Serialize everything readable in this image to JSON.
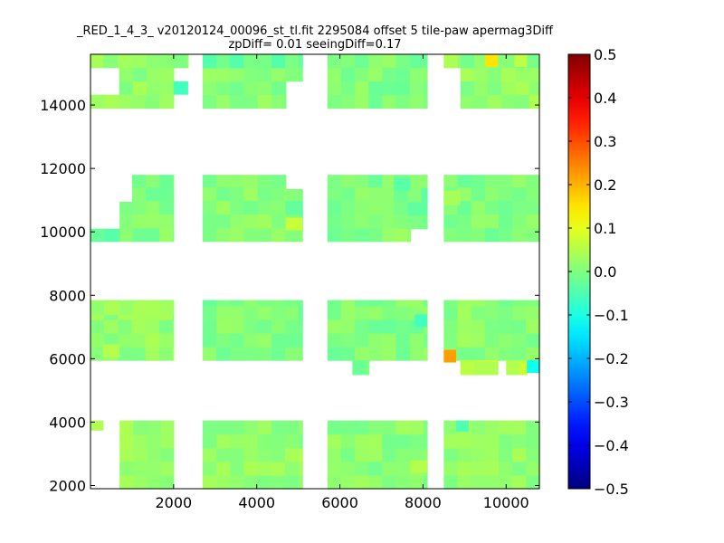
{
  "chart_data": {
    "type": "heatmap",
    "title_line1": "_RED_1_4_3_ v20120124_00096_st_tl.fit 2295084 offset 5 tile-paw apermag3Diff",
    "title_line2": "zpDiff= 0.01 seeingDiff=0.17",
    "xlabel": "",
    "ylabel": "",
    "xlim": [
      0,
      10800
    ],
    "ylim": [
      1900,
      15600
    ],
    "xticks": [
      2000,
      4000,
      6000,
      8000,
      10000
    ],
    "yticks": [
      2000,
      4000,
      6000,
      8000,
      10000,
      12000,
      14000
    ],
    "colorbar": {
      "colormap": "jet",
      "vmin": -0.5,
      "vmax": 0.5,
      "ticks": [
        0.5,
        0.4,
        0.3,
        0.2,
        0.1,
        0.0,
        -0.1,
        -0.2,
        -0.3,
        -0.4,
        -0.5
      ],
      "tick_labels": [
        "0.5",
        "0.4",
        "0.3",
        "0.2",
        "0.1",
        "0.0",
        "−0.1",
        "−0.2",
        "−0.3",
        "−0.4",
        "−0.5"
      ]
    },
    "cell_size": {
      "dx": 330,
      "dy": 430
    },
    "default_value": 0.0,
    "regions": [
      {
        "x": [
          0,
          690
        ],
        "y": [
          15180,
          15600
        ],
        "value": 0.02
      },
      {
        "x": [
          690,
          2000
        ],
        "y": [
          14325,
          15600
        ],
        "value": 0.02
      },
      {
        "x": [
          2000,
          2350
        ],
        "y": [
          15180,
          15600
        ],
        "value": 0.02
      },
      {
        "x": [
          0,
          2000
        ],
        "y": [
          13900,
          14325
        ],
        "value": 0.02
      },
      {
        "x": [
          3100,
          3400
        ],
        "y": [
          15180,
          15600
        ],
        "value": 0.01
      },
      {
        "x": [
          2700,
          4700
        ],
        "y": [
          13900,
          14750
        ],
        "value": 0.01
      },
      {
        "x": [
          2700,
          5100
        ],
        "y": [
          14750,
          15180
        ],
        "value": 0.01
      },
      {
        "x": [
          2700,
          5100
        ],
        "y": [
          15180,
          15600
        ],
        "value": -0.02
      },
      {
        "x": [
          5700,
          8100
        ],
        "y": [
          13900,
          15600
        ],
        "value": 0.0
      },
      {
        "x": [
          8900,
          10800
        ],
        "y": [
          13900,
          15180
        ],
        "value": 0.02
      },
      {
        "x": [
          8900,
          10800
        ],
        "y": [
          15180,
          15600
        ],
        "value": 0.0
      },
      {
        "x": [
          8500,
          8900
        ],
        "y": [
          15180,
          15600
        ],
        "value": 0.02
      },
      {
        "x": [
          1000,
          2000
        ],
        "y": [
          9700,
          11800
        ],
        "value": 0.0
      },
      {
        "x": [
          700,
          1000
        ],
        "y": [
          9700,
          10950
        ],
        "value": 0.02
      },
      {
        "x": [
          0,
          700
        ],
        "y": [
          9700,
          10100
        ],
        "value": -0.02
      },
      {
        "x": [
          2700,
          4700
        ],
        "y": [
          9700,
          11800
        ],
        "value": 0.01
      },
      {
        "x": [
          4700,
          5100
        ],
        "y": [
          9700,
          11350
        ],
        "value": -0.01
      },
      {
        "x": [
          5700,
          7300
        ],
        "y": [
          9700,
          11800
        ],
        "value": 0.0
      },
      {
        "x": [
          7300,
          8100
        ],
        "y": [
          10100,
          11800
        ],
        "value": -0.01
      },
      {
        "x": [
          7300,
          7700
        ],
        "y": [
          9700,
          10100
        ],
        "value": 0.02
      },
      {
        "x": [
          8500,
          10800
        ],
        "y": [
          9700,
          11800
        ],
        "value": 0.0
      },
      {
        "x": [
          0,
          2000
        ],
        "y": [
          5950,
          7400
        ],
        "value": 0.02
      },
      {
        "x": [
          700,
          2000
        ],
        "y": [
          7400,
          7850
        ],
        "value": 0.02
      },
      {
        "x": [
          0,
          700
        ],
        "y": [
          7400,
          7850
        ],
        "value": 0.02
      },
      {
        "x": [
          2700,
          5100
        ],
        "y": [
          5950,
          7850
        ],
        "value": 0.0
      },
      {
        "x": [
          5700,
          8100
        ],
        "y": [
          5950,
          7850
        ],
        "value": 0.0
      },
      {
        "x": [
          6300,
          6700
        ],
        "y": [
          5500,
          5950
        ],
        "value": -0.02
      },
      {
        "x": [
          8500,
          10800
        ],
        "y": [
          5950,
          7850
        ],
        "value": 0.01
      },
      {
        "x": [
          8900,
          9800
        ],
        "y": [
          5500,
          5950
        ],
        "value": 0.06
      },
      {
        "x": [
          10000,
          10500
        ],
        "y": [
          5500,
          5950
        ],
        "value": 0.05
      },
      {
        "x": [
          0,
          300
        ],
        "y": [
          3750,
          4050
        ],
        "value": 0.04
      },
      {
        "x": [
          700,
          2000
        ],
        "y": [
          1900,
          4050
        ],
        "value": 0.02
      },
      {
        "x": [
          2700,
          5100
        ],
        "y": [
          1900,
          4050
        ],
        "value": 0.02
      },
      {
        "x": [
          5700,
          8100
        ],
        "y": [
          1900,
          4050
        ],
        "value": 0.01
      },
      {
        "x": [
          8500,
          10800
        ],
        "y": [
          1900,
          4050
        ],
        "value": 0.02
      }
    ],
    "highlights": [
      {
        "x": [
          9500,
          9800
        ],
        "y": [
          15200,
          15600
        ],
        "value": 0.15
      },
      {
        "x": [
          10200,
          10500
        ],
        "y": [
          15200,
          15600
        ],
        "value": 0.06
      },
      {
        "x": [
          8500,
          8800
        ],
        "y": [
          5880,
          6280
        ],
        "value": 0.22
      },
      {
        "x": [
          10500,
          10800
        ],
        "y": [
          5550,
          5950
        ],
        "value": -0.11
      },
      {
        "x": [
          2000,
          2350
        ],
        "y": [
          14325,
          14750
        ],
        "value": -0.06
      },
      {
        "x": [
          4700,
          5100
        ],
        "y": [
          10050,
          10450
        ],
        "value": 0.07
      },
      {
        "x": [
          8500,
          8900
        ],
        "y": [
          10850,
          11300
        ],
        "value": 0.04
      },
      {
        "x": [
          7300,
          7700
        ],
        "y": [
          11300,
          11700
        ],
        "value": -0.04
      },
      {
        "x": [
          7800,
          8100
        ],
        "y": [
          7000,
          7400
        ],
        "value": -0.06
      },
      {
        "x": [
          8800,
          9100
        ],
        "y": [
          3700,
          4050
        ],
        "value": -0.05
      },
      {
        "x": [
          7700,
          8100
        ],
        "y": [
          2400,
          2800
        ],
        "value": 0.05
      },
      {
        "x": [
          0,
          300
        ],
        "y": [
          15180,
          15600
        ],
        "value": 0.04
      },
      {
        "x": [
          300,
          700
        ],
        "y": [
          6050,
          6450
        ],
        "value": 0.05
      }
    ]
  }
}
